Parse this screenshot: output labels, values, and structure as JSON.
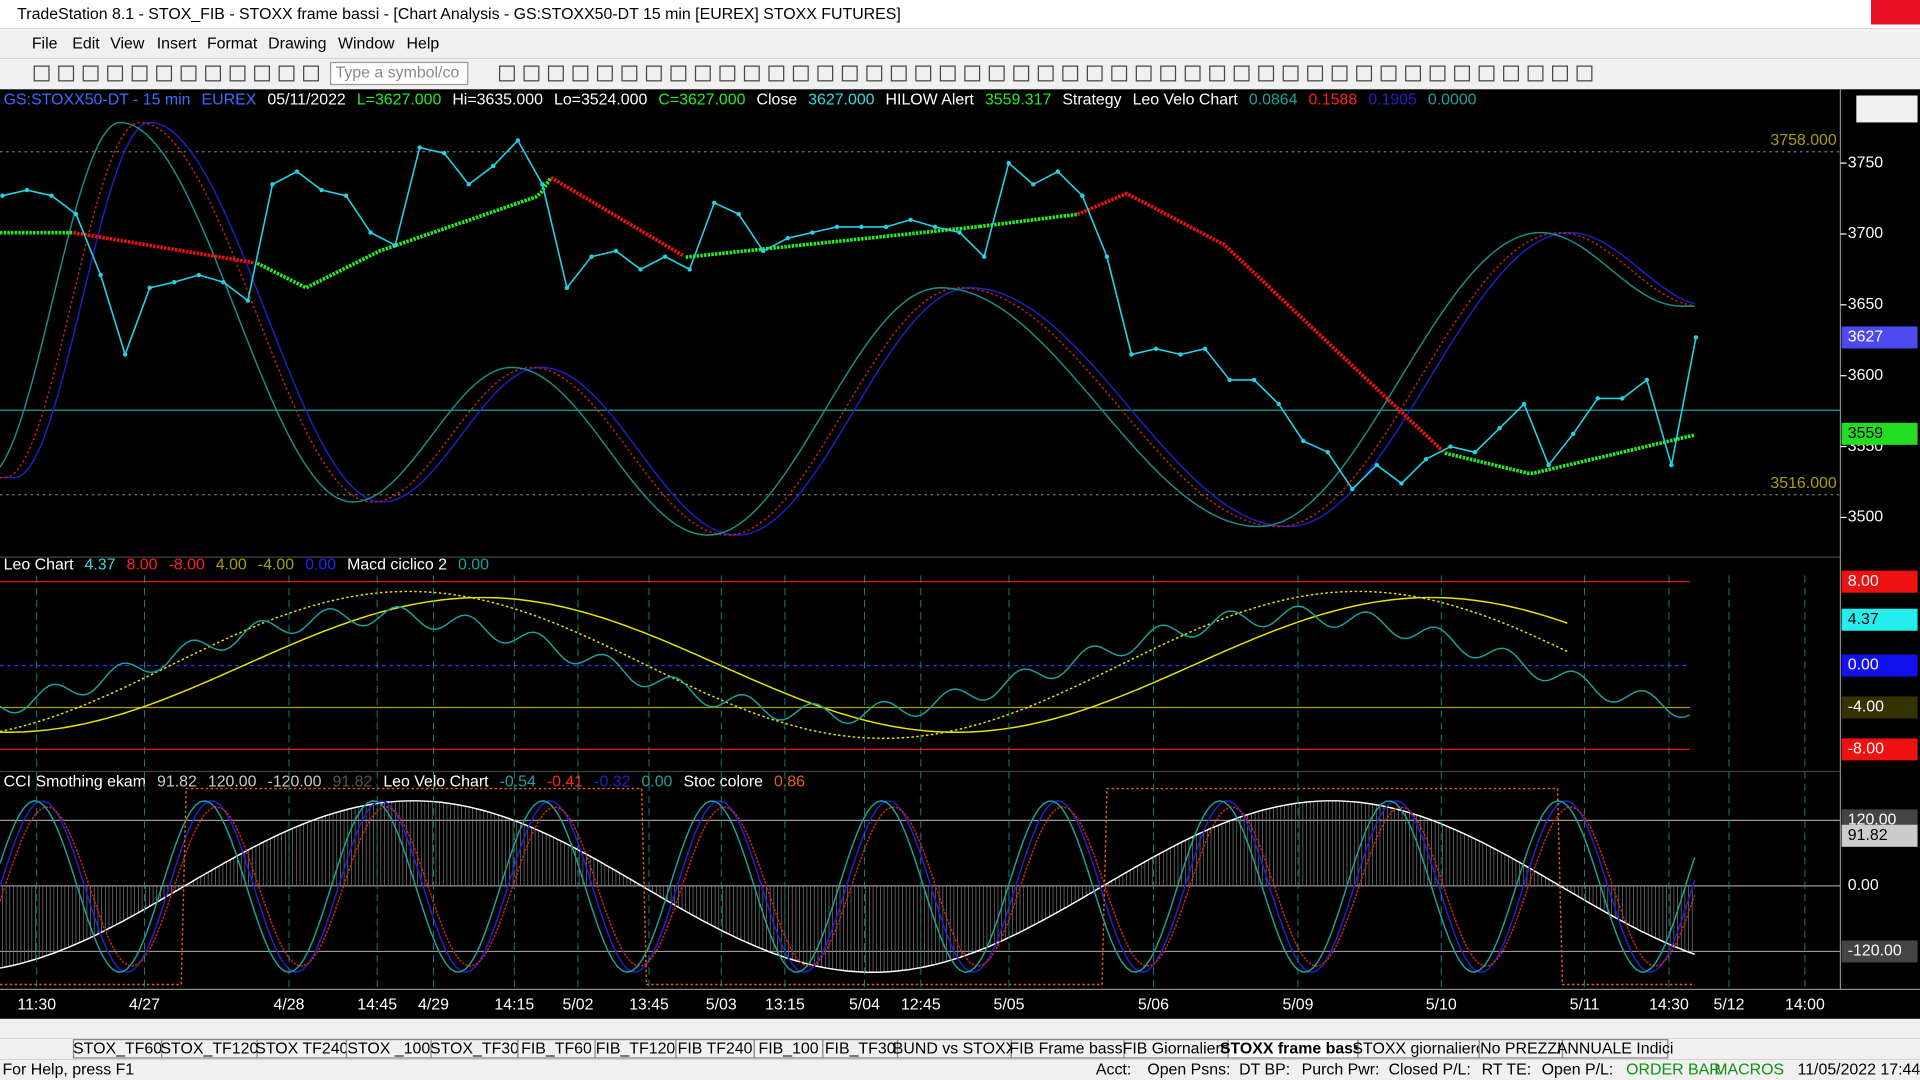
{
  "window": {
    "title": "TradeStation 8.1 - STOX_FIB - STOXX frame bassi - [Chart Analysis - GS:STOXX50-DT  15 min  [EUREX] STOXX FUTURES]",
    "menu": [
      "File",
      "Edit",
      "View",
      "Insert",
      "Format",
      "Drawing",
      "Window",
      "Help"
    ],
    "symbol_box": "Type a symbol/co"
  },
  "chart": {
    "header": [
      {
        "text": "GS:STOXX50-DT - 15 min",
        "color": "#3c6cff"
      },
      {
        "text": "EUREX",
        "color": "#3c6cff"
      },
      {
        "text": "05/11/2022",
        "color": "#ffffff"
      },
      {
        "text": "L=3627.000",
        "color": "#22ee22"
      },
      {
        "text": "Hi=3635.000",
        "color": "#ffffff"
      },
      {
        "text": "Lo=3524.000",
        "color": "#ffffff"
      },
      {
        "text": "C=3627.000",
        "color": "#22ee22"
      },
      {
        "text": "Close",
        "color": "#ffffff"
      },
      {
        "text": "3627.000",
        "color": "#33dddd"
      },
      {
        "text": "HILOW Alert",
        "color": "#ffffff"
      },
      {
        "text": "3559.317",
        "color": "#22ee22"
      },
      {
        "text": "Strategy",
        "color": "#ffffff"
      },
      {
        "text": "Leo Velo Chart",
        "color": "#ffffff"
      },
      {
        "text": "0.0864",
        "color": "#1aa39a"
      },
      {
        "text": "0.1588",
        "color": "#ff2020"
      },
      {
        "text": "0.1905",
        "color": "#2222cc"
      },
      {
        "text": "0.0000",
        "color": "#1aa39a"
      }
    ],
    "price_pane": {
      "type": "line",
      "color": "#22d3e6",
      "values": [
        3727,
        3731,
        3727,
        3714,
        3671,
        3615,
        3662,
        3666,
        3671,
        3666,
        3653,
        3735,
        3744,
        3731,
        3727,
        3701,
        3692,
        3761,
        3757,
        3735,
        3748,
        3766,
        3735,
        3662,
        3684,
        3688,
        3675,
        3684,
        3675,
        3722,
        3714,
        3688,
        3697,
        3701,
        3705,
        3705,
        3705,
        3710,
        3705,
        3701,
        3684,
        3750,
        3735,
        3744,
        3727,
        3684,
        3615,
        3619,
        3615,
        3619,
        3597,
        3597,
        3580,
        3554,
        3546,
        3520,
        3537,
        3524,
        3541,
        3550,
        3546,
        3563,
        3580,
        3537,
        3559,
        3584,
        3584,
        3597,
        3537,
        3627
      ],
      "ylim": [
        3472,
        3802
      ],
      "yticks": [
        3500,
        3550,
        3600,
        3650,
        3700,
        3750
      ],
      "levels": [
        {
          "value": 3758,
          "label": "3758.000"
        },
        {
          "value": 3516,
          "label": "3516.000"
        }
      ],
      "last_boxes": [
        {
          "value": 3627,
          "label": "3627",
          "color": "#4a4af0"
        },
        {
          "value": 3559,
          "label": "3559",
          "color": "#22dd22"
        }
      ]
    },
    "pane2": {
      "header": [
        {
          "text": "Leo Chart",
          "color": "#ffffff"
        },
        {
          "text": "4.37",
          "color": "#33dddd"
        },
        {
          "text": "8.00",
          "color": "#ff2020"
        },
        {
          "text": "-8.00",
          "color": "#ff2020"
        },
        {
          "text": "4.00",
          "color": "#a8a000"
        },
        {
          "text": "-4.00",
          "color": "#a8a000"
        },
        {
          "text": "0.00",
          "color": "#2222ff"
        },
        {
          "text": "Macd ciclico 2",
          "color": "#ffffff"
        },
        {
          "text": "0.00",
          "color": "#1aa39a"
        }
      ],
      "ylim": [
        -10.1,
        10.34
      ],
      "boxes": [
        {
          "value": 8,
          "label": "8.00",
          "color": "#ee1111"
        },
        {
          "value": 4.37,
          "label": "4.37",
          "color": "#22eeee"
        },
        {
          "value": 0,
          "label": "0.00",
          "color": "#1111ee"
        },
        {
          "value": -4,
          "label": "-4.00",
          "color": "#333300"
        },
        {
          "value": -8,
          "label": "-8.00",
          "color": "#ee1111"
        }
      ]
    },
    "pane3": {
      "header": [
        {
          "text": "CCI Smothing ekam",
          "color": "#ffffff"
        },
        {
          "text": "91.82",
          "color": "#cccccc"
        },
        {
          "text": "120.00",
          "color": "#cccccc"
        },
        {
          "text": "-120.00",
          "color": "#cccccc"
        },
        {
          "text": "91.82",
          "color": "#555555"
        },
        {
          "text": "Leo Velo Chart",
          "color": "#ffffff"
        },
        {
          "text": "-0.54",
          "color": "#1aa39a"
        },
        {
          "text": "-0.41",
          "color": "#ff2020"
        },
        {
          "text": "-0.32",
          "color": "#2222cc"
        },
        {
          "text": "0.00",
          "color": "#1aa39a"
        },
        {
          "text": "Stoc colore",
          "color": "#ffffff"
        },
        {
          "text": "0.86",
          "color": "#e06010"
        }
      ],
      "ylim": [
        -189.5,
        209.7
      ],
      "boxes": [
        {
          "value": 120,
          "label": "120.00",
          "color": "#444444"
        },
        {
          "value": 91.82,
          "label": "91.82",
          "color": "#cccccc"
        },
        {
          "value": 0,
          "label": "0.00",
          "color": "#000000"
        },
        {
          "value": -120,
          "label": "-120.00",
          "color": "#444444"
        }
      ]
    },
    "x_labels": [
      "11:30",
      "4/27",
      "4/28",
      "14:45",
      "4/29",
      "14:15",
      "5/02",
      "13:45",
      "5/03",
      "13:15",
      "5/04",
      "12:45",
      "5/05",
      "5/06",
      "5/09",
      "5/10",
      "5/11",
      "14:30",
      "5/12",
      "14:00"
    ]
  },
  "tabs": {
    "items": [
      "STOX_TF60",
      "STOX_TF120",
      "STOX TF240",
      "STOX _100",
      "STOX_TF30",
      "FIB_TF60",
      "FIB_TF120",
      "FIB TF240",
      "FIB_100",
      "FIB_TF30",
      "BUND vs STOXX",
      "FIB Frame bassi",
      "FIB Giornaliero",
      "STOXX frame bassi",
      "STOXX giornaliero",
      "No PREZZI",
      "ANNUALE Indici"
    ],
    "active": 13
  },
  "status": {
    "help": "For Help, press F1",
    "fields": [
      "Acct:",
      "Open Psns:",
      "DT BP:",
      "Purch Pwr:",
      "Closed P/L:",
      "RT TE:",
      "Open P/L:"
    ],
    "order_bar": "ORDER BAR",
    "macros": "MACROS",
    "clock": "11/05/2022 17:44"
  }
}
